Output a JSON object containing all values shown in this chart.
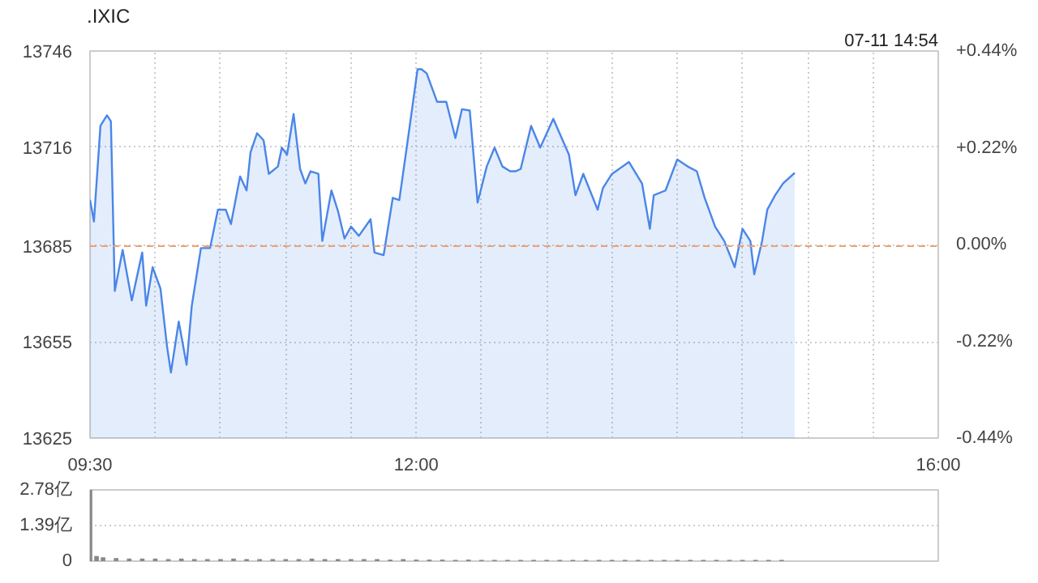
{
  "chart_data": [
    {
      "type": "area",
      "title": ".IXIC",
      "annotations": [
        "07-11 14:54"
      ],
      "x": [
        9.5,
        9.53,
        9.58,
        9.63,
        9.66,
        9.69,
        9.75,
        9.82,
        9.9,
        9.93,
        9.98,
        10.04,
        10.09,
        10.12,
        10.18,
        10.24,
        10.28,
        10.35,
        10.42,
        10.48,
        10.54,
        10.58,
        10.65,
        10.7,
        10.73,
        10.78,
        10.83,
        10.87,
        10.94,
        10.97,
        11.01,
        11.06,
        11.11,
        11.15,
        11.19,
        11.25,
        11.28,
        11.35,
        11.4,
        11.45,
        11.5,
        11.56,
        11.65,
        11.68,
        11.75,
        11.82,
        11.87,
        11.94,
        12.01,
        12.04,
        12.08,
        12.16,
        12.23,
        12.3,
        12.35,
        12.41,
        12.47,
        12.54,
        12.6,
        12.66,
        12.72,
        12.76,
        12.8,
        12.88,
        12.95,
        13.05,
        13.17,
        13.22,
        13.28,
        13.39,
        13.43,
        13.5,
        13.63,
        13.73,
        13.79,
        13.82,
        13.91,
        14.0,
        14.08,
        14.15,
        14.21,
        14.29,
        14.36,
        14.44,
        14.5,
        14.56,
        14.59,
        14.65,
        14.69,
        14.75,
        14.81,
        14.9
      ],
      "series": [
        {
          "color": "#4a86e8",
          "values": [
            13699.5,
            13692.7,
            13722.6,
            13725.9,
            13724,
            13671,
            13683.8,
            13668,
            13683,
            13666.4,
            13678.4,
            13671.7,
            13653.7,
            13645.5,
            13661.4,
            13647.9,
            13666.4,
            13684.4,
            13684.4,
            13696.4,
            13696.4,
            13691.9,
            13706.8,
            13702.4,
            13714.3,
            13720.3,
            13718.1,
            13707.6,
            13709.9,
            13715.8,
            13713.6,
            13726.3,
            13709.1,
            13704.6,
            13708.4,
            13707.6,
            13686.6,
            13702.4,
            13696,
            13687.4,
            13691.1,
            13688.2,
            13693.4,
            13683,
            13682.2,
            13700.1,
            13699.4,
            13719.6,
            13740.3,
            13740.3,
            13739,
            13730.1,
            13730.1,
            13718.8,
            13727.8,
            13727.4,
            13698.6,
            13709.9,
            13715.8,
            13709.9,
            13708.4,
            13708.4,
            13709.1,
            13722.6,
            13715.8,
            13724.8,
            13713.6,
            13700.9,
            13707.6,
            13696.4,
            13703.1,
            13707.6,
            13711.3,
            13704.6,
            13690.4,
            13700.9,
            13702.4,
            13712.1,
            13709.9,
            13708.4,
            13700.1,
            13691.1,
            13686.6,
            13678.4,
            13690.4,
            13686.6,
            13676.2,
            13686.6,
            13696.4,
            13700.9,
            13704.6,
            13707.9
          ]
        }
      ],
      "xlim": [
        9.5,
        16
      ],
      "xticks": [
        {
          "value": 9.5,
          "label": "09:30"
        },
        {
          "value": 10,
          "label": null
        },
        {
          "value": 10.5,
          "label": null
        },
        {
          "value": 11,
          "label": null
        },
        {
          "value": 11.5,
          "label": null
        },
        {
          "value": 12,
          "label": "12:00"
        },
        {
          "value": 12.5,
          "label": null
        },
        {
          "value": 13,
          "label": null
        },
        {
          "value": 13.5,
          "label": null
        },
        {
          "value": 14,
          "label": null
        },
        {
          "value": 14.5,
          "label": null
        },
        {
          "value": 15,
          "label": null
        },
        {
          "value": 15.5,
          "label": null
        },
        {
          "value": 16,
          "label": "16:00"
        }
      ],
      "ylim": [
        13625,
        13746
      ],
      "yticks": [
        13625,
        13655,
        13685,
        13716,
        13746
      ],
      "y2lim": [
        -0.44,
        0.44
      ],
      "y2ticks": [
        {
          "value": -0.44,
          "label": "-0.44%"
        },
        {
          "value": -0.22,
          "label": "-0.22%"
        },
        {
          "value": 0,
          "label": "0.00%"
        },
        {
          "value": 0.22,
          "label": "+0.22%"
        },
        {
          "value": 0.44,
          "label": "+0.44%"
        }
      ],
      "ref_lines": [
        {
          "axis": "y",
          "value": 13685,
          "color": "#f0a070",
          "line_style": "dashed"
        }
      ],
      "grid": true
    },
    {
      "type": "bar",
      "x": [
        9.5,
        9.55,
        9.6,
        9.7,
        9.8,
        9.9,
        10.0,
        10.1,
        10.2,
        10.3,
        10.4,
        10.5,
        10.6,
        10.7,
        10.8,
        10.9,
        11.0,
        11.1,
        11.2,
        11.3,
        11.4,
        11.5,
        11.6,
        11.7,
        11.8,
        11.9,
        12.0,
        12.1,
        12.2,
        12.3,
        12.4,
        12.5,
        12.6,
        12.7,
        12.8,
        12.9,
        13.0,
        13.1,
        13.2,
        13.3,
        13.4,
        13.5,
        13.6,
        13.7,
        13.8,
        13.9,
        14.0,
        14.1,
        14.2,
        14.3,
        14.4,
        14.5,
        14.6,
        14.7,
        14.8
      ],
      "values": [
        2.78,
        0.2,
        0.15,
        0.12,
        0.1,
        0.1,
        0.1,
        0.08,
        0.1,
        0.08,
        0.08,
        0.08,
        0.1,
        0.08,
        0.08,
        0.08,
        0.08,
        0.08,
        0.1,
        0.08,
        0.08,
        0.08,
        0.08,
        0.08,
        0.06,
        0.08,
        0.06,
        0.06,
        0.06,
        0.05,
        0.06,
        0.05,
        0.05,
        0.05,
        0.05,
        0.05,
        0.05,
        0.05,
        0.05,
        0.05,
        0.05,
        0.05,
        0.05,
        0.05,
        0.05,
        0.05,
        0.05,
        0.05,
        0.05,
        0.05,
        0.05,
        0.05,
        0.05,
        0.05,
        0.05
      ],
      "color": "#888888",
      "xlim": [
        9.5,
        16
      ],
      "ylim": [
        0,
        2.78
      ],
      "yticks": [
        0,
        {
          "value": 1.39,
          "label": "1.39亿"
        },
        {
          "value": 2.78,
          "label": "2.78亿"
        }
      ],
      "grid": "y",
      "tick_labels": "y"
    }
  ]
}
